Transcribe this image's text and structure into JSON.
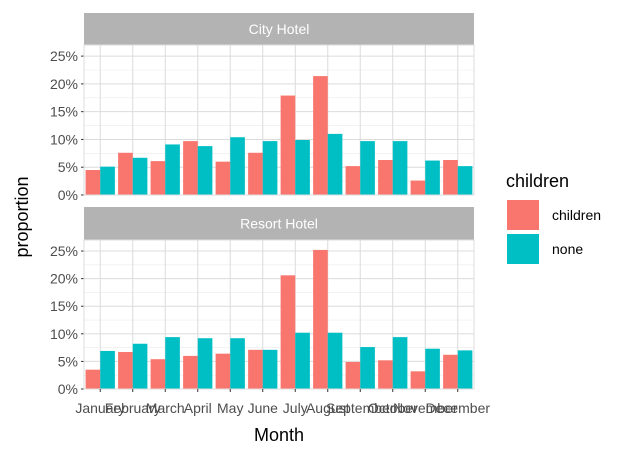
{
  "chart_data": {
    "type": "bar",
    "xlabel": "Month",
    "ylabel": "proportion",
    "categories": [
      "January",
      "February",
      "March",
      "April",
      "May",
      "June",
      "July",
      "August",
      "September",
      "October",
      "November",
      "December"
    ],
    "ylim": [
      0,
      0.27
    ],
    "y_ticks": [
      0,
      0.05,
      0.1,
      0.15,
      0.2,
      0.25
    ],
    "y_tick_labels": [
      "0%",
      "5%",
      "10%",
      "15%",
      "20%",
      "25%"
    ],
    "grid": true,
    "legend": {
      "title": "children",
      "position": "right",
      "entries": [
        {
          "label": "children",
          "color": "#F8766D"
        },
        {
          "label": "none",
          "color": "#00BFC4"
        }
      ]
    },
    "panels": [
      {
        "title": "City Hotel",
        "series": [
          {
            "name": "children",
            "color": "#F8766D",
            "values": [
              0.045,
              0.076,
              0.061,
              0.097,
              0.06,
              0.076,
              0.179,
              0.214,
              0.052,
              0.063,
              0.026,
              0.063
            ]
          },
          {
            "name": "none",
            "color": "#00BFC4",
            "values": [
              0.051,
              0.067,
              0.091,
              0.088,
              0.104,
              0.097,
              0.099,
              0.11,
              0.097,
              0.097,
              0.062,
              0.052
            ]
          }
        ]
      },
      {
        "title": "Resort Hotel",
        "series": [
          {
            "name": "children",
            "color": "#F8766D",
            "values": [
              0.035,
              0.067,
              0.054,
              0.06,
              0.064,
              0.071,
              0.206,
              0.252,
              0.049,
              0.052,
              0.032,
              0.062
            ]
          },
          {
            "name": "none",
            "color": "#00BFC4",
            "values": [
              0.069,
              0.082,
              0.094,
              0.092,
              0.092,
              0.071,
              0.102,
              0.102,
              0.076,
              0.094,
              0.073,
              0.07
            ]
          }
        ]
      }
    ]
  }
}
